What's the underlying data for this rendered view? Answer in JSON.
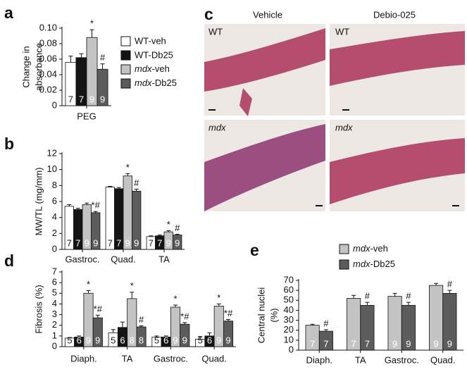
{
  "chart_data": [
    {
      "type": "bar",
      "label": "a",
      "ylabel": [
        "Change in",
        "absorbance"
      ],
      "categories": [
        "PEG"
      ],
      "ylim": [
        0,
        0.1
      ],
      "yticks": [
        0,
        0.02,
        0.04,
        0.06,
        0.08,
        {
          "value": 0.1,
          "label": "0.10"
        }
      ],
      "legend": true,
      "series": [
        {
          "name": "WT-veh",
          "color": "#ffffff",
          "n_color": "#222222",
          "values": [
            0.056
          ],
          "errors": [
            0.008
          ],
          "n": [
            7
          ],
          "sig": [
            null
          ]
        },
        {
          "name": "WT-Db25",
          "color": "#141414",
          "n_color": "#ffffff",
          "values": [
            0.062
          ],
          "errors": [
            0.005
          ],
          "n": [
            7
          ],
          "sig": [
            null
          ]
        },
        {
          "name": "mdx-veh",
          "italic": true,
          "color": "#c4c4c4",
          "n_color": "#ffffff",
          "values": [
            0.088
          ],
          "errors": [
            0.01
          ],
          "n": [
            9
          ],
          "sig": [
            "*"
          ]
        },
        {
          "name": "mdx-Db25",
          "italic": true,
          "color": "#5c5c5c",
          "n_color": "#ffffff",
          "values": [
            0.047
          ],
          "errors": [
            0.007
          ],
          "n": [
            9
          ],
          "sig": [
            "#"
          ]
        }
      ]
    },
    {
      "type": "bar",
      "label": "b",
      "ylabel": [
        "MW/TL (mg/mm)"
      ],
      "categories": [
        "Gastroc.",
        "Quad.",
        "TA"
      ],
      "ylim": [
        0,
        12
      ],
      "yticks": [
        0,
        2,
        4,
        6,
        8,
        10,
        12
      ],
      "legend": false,
      "series": [
        {
          "name": "WT-veh",
          "color": "#ffffff",
          "n_color": "#222222",
          "values": [
            5.4,
            7.8,
            1.6
          ],
          "errors": [
            0.2,
            0.1,
            0.1
          ],
          "n": [
            7,
            7,
            7
          ],
          "sig": [
            null,
            null,
            null
          ]
        },
        {
          "name": "WT-Db25",
          "color": "#141414",
          "n_color": "#ffffff",
          "values": [
            5.0,
            7.6,
            1.7
          ],
          "errors": [
            0.15,
            0.15,
            0.1
          ],
          "n": [
            7,
            7,
            7
          ],
          "sig": [
            null,
            null,
            null
          ]
        },
        {
          "name": "mdx-veh",
          "italic": true,
          "color": "#c4c4c4",
          "n_color": "#ffffff",
          "values": [
            5.6,
            9.2,
            2.2
          ],
          "errors": [
            0.2,
            0.3,
            0.15
          ],
          "n": [
            9,
            9,
            9
          ],
          "sig": [
            null,
            "*",
            "*"
          ]
        },
        {
          "name": "mdx-Db25",
          "italic": true,
          "color": "#5c5c5c",
          "n_color": "#ffffff",
          "values": [
            4.6,
            7.3,
            1.8
          ],
          "errors": [
            0.15,
            0.25,
            0.1
          ],
          "n": [
            9,
            9,
            9
          ],
          "sig": [
            "*#",
            "#",
            "#"
          ]
        }
      ]
    },
    {
      "type": "bar",
      "label": "d",
      "ylabel": [
        "Fibrosis (%)"
      ],
      "categories": [
        "Diaph.",
        "TA",
        "Gastroc.",
        "Quad."
      ],
      "ylim": [
        0,
        7
      ],
      "yticks": [
        0,
        1,
        2,
        3,
        4,
        5,
        6,
        7
      ],
      "legend": false,
      "series": [
        {
          "name": "WT-veh",
          "color": "#ffffff",
          "n_color": "#222222",
          "values": [
            0.8,
            1.3,
            0.9,
            0.7
          ],
          "errors": [
            0.05,
            0.3,
            0.1,
            0.25
          ],
          "n": [
            5,
            5,
            5,
            5
          ],
          "sig": [
            null,
            null,
            null,
            null
          ]
        },
        {
          "name": "WT-Db25",
          "color": "#141414",
          "n_color": "#ffffff",
          "values": [
            0.9,
            1.8,
            0.9,
            1.0
          ],
          "errors": [
            0.1,
            0.5,
            0.1,
            0.3
          ],
          "n": [
            6,
            6,
            6,
            6
          ],
          "sig": [
            null,
            null,
            null,
            null
          ]
        },
        {
          "name": "mdx-veh",
          "italic": true,
          "color": "#c4c4c4",
          "n_color": "#ffffff",
          "values": [
            5.0,
            4.5,
            3.7,
            3.8
          ],
          "errors": [
            0.25,
            0.6,
            0.2,
            0.2
          ],
          "n": [
            9,
            8,
            9,
            9
          ],
          "sig": [
            "*",
            "*",
            "*",
            "*"
          ]
        },
        {
          "name": "mdx-Db25",
          "italic": true,
          "color": "#5c5c5c",
          "n_color": "#ffffff",
          "values": [
            2.7,
            1.85,
            2.1,
            2.4
          ],
          "errors": [
            0.25,
            0.1,
            0.15,
            0.15
          ],
          "n": [
            9,
            8,
            9,
            9
          ],
          "sig": [
            "*#",
            "#",
            "*#",
            "*#"
          ]
        }
      ]
    },
    {
      "type": "bar",
      "label": "e",
      "ylabel": [
        "Central nuclei",
        "(%)"
      ],
      "categories": [
        "Diaph.",
        "TA",
        "Gastroc.",
        "Quad."
      ],
      "ylim": [
        0,
        70
      ],
      "yticks": [
        0,
        10,
        20,
        30,
        40,
        50,
        60,
        70
      ],
      "legend": true,
      "series": [
        {
          "name": "mdx-veh",
          "italic": true,
          "color": "#c4c4c4",
          "n_color": "#ffffff",
          "values": [
            25,
            52,
            54,
            65
          ],
          "errors": [
            1,
            3,
            3,
            2
          ],
          "n": [
            7,
            7,
            9,
            9
          ],
          "sig": [
            null,
            null,
            null,
            null
          ]
        },
        {
          "name": "mdx-Db25",
          "italic": true,
          "color": "#5c5c5c",
          "n_color": "#ffffff",
          "values": [
            19,
            45,
            45,
            57
          ],
          "errors": [
            1.5,
            3,
            3,
            3
          ],
          "n": [
            7,
            7,
            9,
            9
          ],
          "sig": [
            "#",
            "#",
            "#",
            "#"
          ]
        }
      ]
    }
  ],
  "images": {
    "label": "c",
    "columns": [
      "Vehicle",
      "Debio-025"
    ],
    "tiles": [
      {
        "text": "WT"
      },
      {
        "text": "WT"
      },
      {
        "text": "mdx",
        "italic": true
      },
      {
        "text": "mdx",
        "italic": true
      }
    ]
  }
}
